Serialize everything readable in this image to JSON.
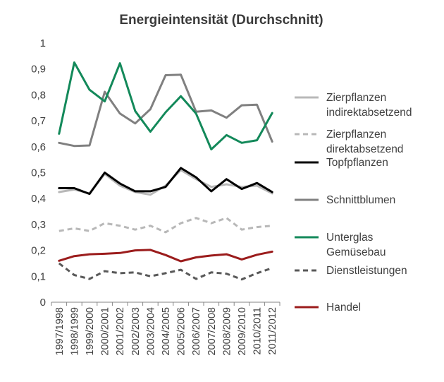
{
  "chart_data": {
    "type": "line",
    "title": "Energieintensität (Durchschnitt)",
    "xlabel": "",
    "ylabel": "",
    "ylim": [
      0,
      1
    ],
    "yticks": [
      "0",
      "0,1",
      "0,2",
      "0,3",
      "0,4",
      "0,5",
      "0,6",
      "0,7",
      "0,8",
      "0,9",
      "1"
    ],
    "grid": false,
    "legend_position": "right",
    "categories": [
      "1997/1998",
      "1998/1999",
      "1999/2000",
      "2000/2001",
      "2001/2002",
      "2002/2003",
      "2003/2004",
      "2004/2005",
      "2005/2006",
      "2006/2007",
      "2007/2008",
      "2008/2009",
      "2009/2010",
      "2010/2011",
      "2011/2012"
    ],
    "series": [
      {
        "name": "Zierpflanzen indirektabsetzend",
        "color": "#b8b8b8",
        "dash": "solid",
        "values": [
          0.425,
          0.435,
          0.42,
          0.495,
          0.45,
          0.425,
          0.415,
          0.45,
          0.51,
          0.475,
          0.445,
          0.455,
          0.445,
          0.45,
          0.42
        ]
      },
      {
        "name": "Zierpflanzen direktabsetzend",
        "color": "#b8b8b8",
        "dash": "dashed",
        "values": [
          0.275,
          0.285,
          0.275,
          0.305,
          0.295,
          0.28,
          0.295,
          0.27,
          0.305,
          0.325,
          0.305,
          0.325,
          0.28,
          0.29,
          0.295
        ]
      },
      {
        "name": "Topfpflanzen",
        "color": "#000000",
        "dash": "solid",
        "values": [
          0.44,
          0.44,
          0.418,
          0.5,
          0.458,
          0.428,
          0.428,
          0.445,
          0.518,
          0.482,
          0.428,
          0.475,
          0.437,
          0.46,
          0.425
        ]
      },
      {
        "name": "Schnittblumen",
        "color": "#808080",
        "dash": "solid",
        "values": [
          0.615,
          0.603,
          0.605,
          0.812,
          0.728,
          0.69,
          0.745,
          0.876,
          0.878,
          0.735,
          0.74,
          0.712,
          0.76,
          0.762,
          0.62
        ]
      },
      {
        "name": "Unterglas Gemüsebau",
        "color": "#13895a",
        "dash": "solid",
        "values": [
          0.65,
          0.925,
          0.82,
          0.775,
          0.922,
          0.738,
          0.658,
          0.733,
          0.795,
          0.728,
          0.59,
          0.645,
          0.615,
          0.625,
          0.73
        ]
      },
      {
        "name": "Dienstleistungen",
        "color": "#595959",
        "dash": "dashed",
        "values": [
          0.15,
          0.105,
          0.09,
          0.12,
          0.112,
          0.115,
          0.1,
          0.112,
          0.125,
          0.09,
          0.115,
          0.11,
          0.088,
          0.112,
          0.132
        ]
      },
      {
        "name": "Handel",
        "color": "#9b1c1c",
        "dash": "solid",
        "values": [
          0.16,
          0.178,
          0.185,
          0.187,
          0.19,
          0.2,
          0.202,
          0.182,
          0.158,
          0.173,
          0.18,
          0.185,
          0.165,
          0.183,
          0.195
        ]
      }
    ]
  }
}
